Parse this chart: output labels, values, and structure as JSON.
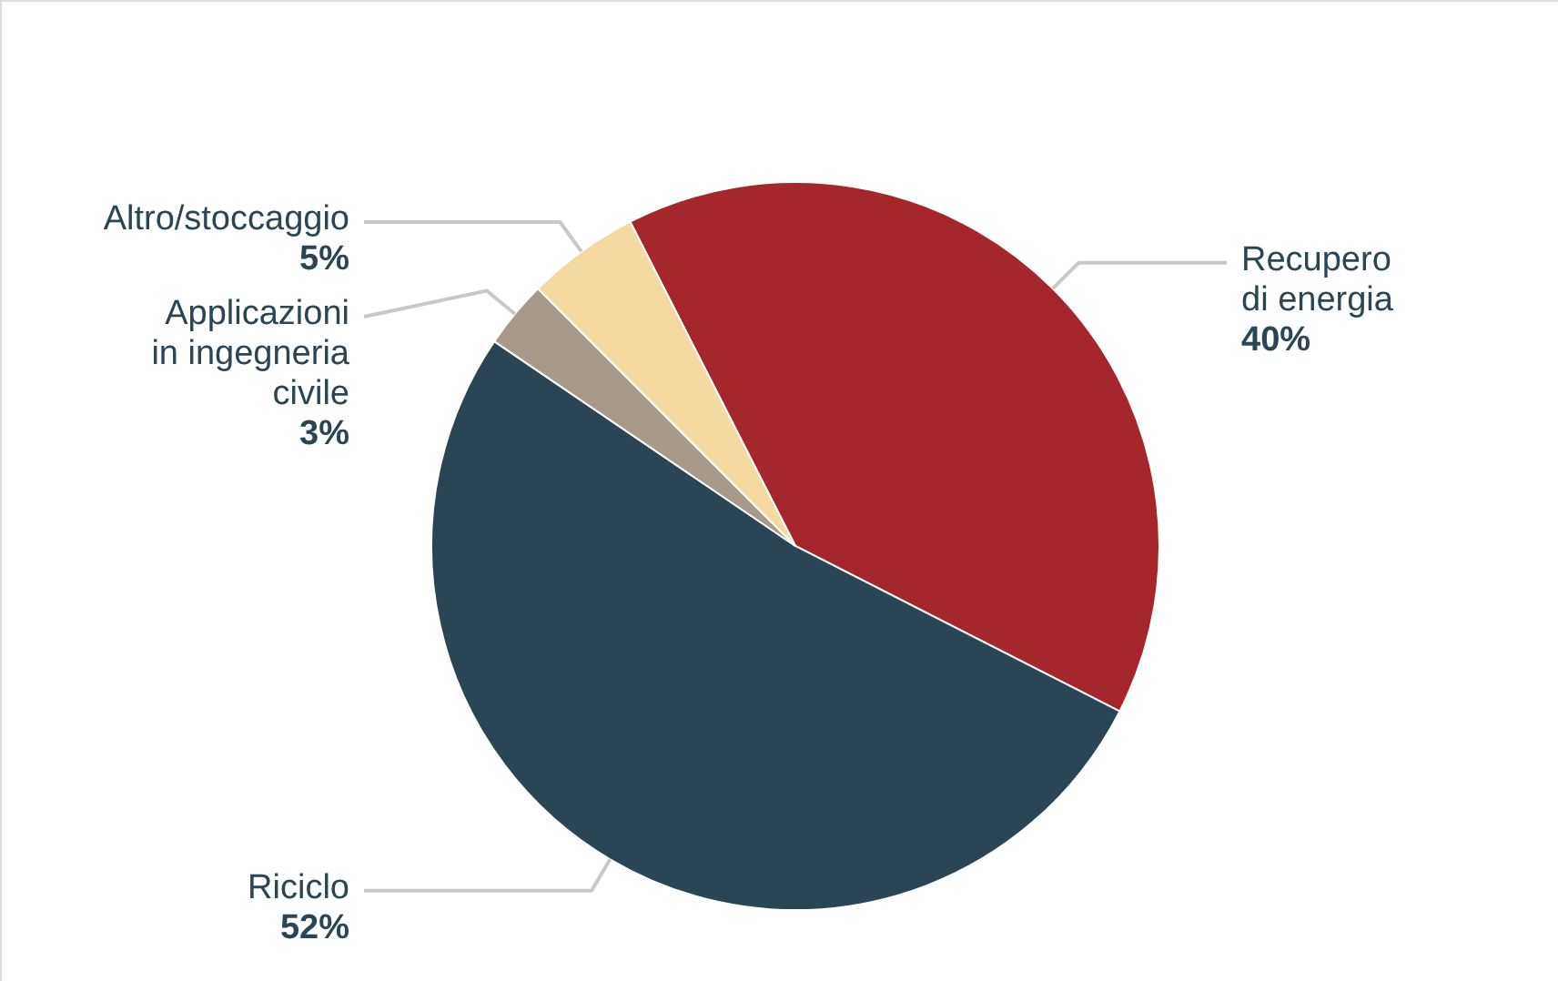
{
  "chart_data": {
    "type": "pie",
    "categories": [
      "Recupero di energia",
      "Riciclo",
      "Applicazioni in ingegneria civile",
      "Altro/stoccaggio"
    ],
    "values": [
      40,
      52,
      3,
      5
    ],
    "colors": [
      "#a6272b",
      "#2b4555",
      "#a79a8b",
      "#f4d9a1"
    ],
    "value_labels": [
      "40%",
      "52%",
      "3%",
      "5%"
    ]
  }
}
